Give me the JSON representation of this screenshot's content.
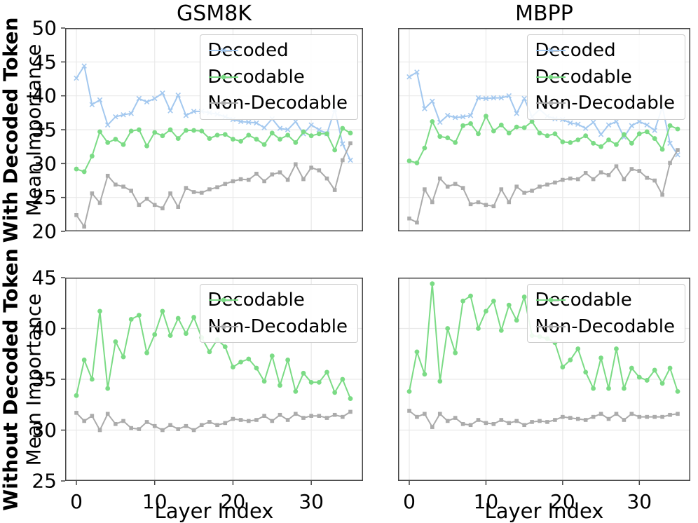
{
  "figure": {
    "column_titles": [
      "GSM8K",
      "MBPP"
    ],
    "row_labels": [
      {
        "primary": "With Decoded Token",
        "secondary": "Mean Importance"
      },
      {
        "primary": "Without Decoded Token",
        "secondary": "Mean Importance"
      }
    ],
    "x_axis_label": "Layer Index"
  },
  "colors": {
    "decoded": "#a3c8ef",
    "decodable": "#7bdb85",
    "non_decodable": "#ababab",
    "grid": "#e9e9e9",
    "spine": "#454545",
    "text": "#000000",
    "legend_border": "#cccccc",
    "background": "#ffffff"
  },
  "chart_data": [
    {
      "id": "gsm8k-with-decoded-token",
      "type": "line",
      "dataset": "GSM8K",
      "condition": "With Decoded Token",
      "ylabel": "Mean Importance",
      "x_range": [
        0,
        35
      ],
      "ylim": [
        20,
        50
      ],
      "yticks": [
        20,
        25,
        30,
        35,
        40,
        45,
        50
      ],
      "xticks": [
        0,
        10,
        20,
        30
      ],
      "show_ytick_labels": true,
      "show_xtick_labels": false,
      "grid": true,
      "legend_position": "upper right",
      "series": [
        {
          "name": "Decoded",
          "color": "decoded",
          "marker": "x",
          "values": [
            42.6,
            44.4,
            38.7,
            39.4,
            35.7,
            36.9,
            37.2,
            37.4,
            39.6,
            39.1,
            39.6,
            40.4,
            37.8,
            40.1,
            37.1,
            37.7,
            37.7,
            37.5,
            37.3,
            36.9,
            36.5,
            36.2,
            36.1,
            36.0,
            35.3,
            36.6,
            35.2,
            35.0,
            36.2,
            34.4,
            35.7,
            35.0,
            34.4,
            38.0,
            32.9,
            30.5
          ]
        },
        {
          "name": "Decodable",
          "color": "decodable",
          "marker": "circle",
          "values": [
            29.2,
            28.8,
            31.1,
            34.7,
            33.1,
            33.6,
            32.8,
            34.8,
            35.0,
            32.6,
            34.6,
            34.1,
            35.0,
            33.7,
            34.9,
            34.9,
            34.8,
            33.7,
            34.2,
            34.3,
            33.6,
            33.3,
            34.2,
            33.6,
            32.8,
            34.5,
            33.6,
            34.2,
            33.1,
            34.7,
            34.1,
            34.4,
            34.4,
            32.0,
            35.2,
            34.5
          ]
        },
        {
          "name": "Non-Decodable",
          "color": "non_decodable",
          "marker": "square",
          "values": [
            22.4,
            20.7,
            25.6,
            24.2,
            28.2,
            26.9,
            26.6,
            26.0,
            23.9,
            24.8,
            23.9,
            23.4,
            25.6,
            23.6,
            26.4,
            25.8,
            25.7,
            26.2,
            26.5,
            27.0,
            27.4,
            27.7,
            27.6,
            28.5,
            27.4,
            28.4,
            28.7,
            27.6,
            29.9,
            27.7,
            29.4,
            29.0,
            27.8,
            26.1,
            30.5,
            33.0
          ]
        }
      ]
    },
    {
      "id": "mbpp-with-decoded-token",
      "type": "line",
      "dataset": "MBPP",
      "condition": "With Decoded Token",
      "ylabel": "Mean Importance",
      "x_range": [
        0,
        35
      ],
      "ylim": [
        20,
        50
      ],
      "yticks": [
        20,
        25,
        30,
        35,
        40,
        45,
        50
      ],
      "xticks": [
        0,
        10,
        20,
        30
      ],
      "show_ytick_labels": false,
      "show_xtick_labels": false,
      "grid": true,
      "legend_position": "upper right",
      "series": [
        {
          "name": "Decoded",
          "color": "decoded",
          "marker": "x",
          "values": [
            42.8,
            43.5,
            38.1,
            39.2,
            36.1,
            37.1,
            36.8,
            36.9,
            37.1,
            39.7,
            39.6,
            39.7,
            39.7,
            40.0,
            37.4,
            39.6,
            36.9,
            38.0,
            37.0,
            36.6,
            36.5,
            36.0,
            35.8,
            35.2,
            36.1,
            34.3,
            35.7,
            36.2,
            33.9,
            35.6,
            36.2,
            35.7,
            34.9,
            38.4,
            33.0,
            31.3
          ]
        },
        {
          "name": "Decodable",
          "color": "decodable",
          "marker": "circle",
          "values": [
            30.4,
            30.1,
            32.3,
            36.2,
            34.0,
            33.8,
            33.1,
            35.6,
            35.9,
            34.4,
            37.0,
            34.8,
            35.7,
            34.5,
            35.4,
            35.3,
            36.2,
            34.5,
            34.1,
            34.4,
            33.2,
            33.1,
            33.5,
            34.1,
            33.0,
            32.5,
            33.5,
            32.8,
            34.3,
            33.0,
            34.4,
            34.7,
            33.7,
            32.1,
            35.6,
            35.1
          ]
        },
        {
          "name": "Non-Decodable",
          "color": "non_decodable",
          "marker": "square",
          "values": [
            21.9,
            21.3,
            26.2,
            24.3,
            27.8,
            26.6,
            27.0,
            26.4,
            24.0,
            24.3,
            23.9,
            23.7,
            26.2,
            24.3,
            26.6,
            25.7,
            26.0,
            26.6,
            26.9,
            27.2,
            27.6,
            27.8,
            27.7,
            28.6,
            27.7,
            28.7,
            28.3,
            29.6,
            27.7,
            29.2,
            28.9,
            27.9,
            27.5,
            25.4,
            30.1,
            32.0
          ]
        }
      ]
    },
    {
      "id": "gsm8k-without-decoded-token",
      "type": "line",
      "dataset": "GSM8K",
      "condition": "Without Decoded Token",
      "ylabel": "Mean Importance",
      "x_range": [
        0,
        35
      ],
      "ylim": [
        25,
        45
      ],
      "yticks": [
        25,
        30,
        35,
        40,
        45
      ],
      "xticks": [
        0,
        10,
        20,
        30
      ],
      "show_ytick_labels": true,
      "show_xtick_labels": true,
      "grid": true,
      "legend_position": "upper right",
      "series": [
        {
          "name": "Decodable",
          "color": "decodable",
          "marker": "circle",
          "values": [
            33.4,
            36.9,
            35.0,
            41.7,
            34.1,
            38.7,
            37.2,
            40.9,
            41.3,
            37.6,
            39.4,
            41.7,
            39.3,
            41.0,
            39.5,
            41.1,
            39.1,
            37.7,
            38.9,
            38.2,
            36.2,
            36.7,
            37.0,
            36.1,
            34.8,
            37.3,
            34.4,
            36.9,
            33.8,
            35.6,
            34.7,
            34.7,
            35.7,
            33.7,
            35.0,
            33.1
          ]
        },
        {
          "name": "Non-Decodable",
          "color": "non_decodable",
          "marker": "square",
          "values": [
            31.7,
            30.9,
            31.4,
            30.0,
            31.6,
            30.6,
            30.9,
            30.2,
            30.1,
            30.8,
            30.4,
            30.0,
            30.5,
            30.1,
            30.4,
            30.0,
            30.5,
            30.8,
            30.5,
            30.7,
            31.1,
            31.0,
            30.9,
            31.0,
            31.4,
            30.9,
            31.5,
            31.0,
            31.6,
            31.2,
            31.4,
            31.4,
            31.2,
            31.5,
            31.3,
            31.8
          ]
        }
      ]
    },
    {
      "id": "mbpp-without-decoded-token",
      "type": "line",
      "dataset": "MBPP",
      "condition": "Without Decoded Token",
      "ylabel": "Mean Importance",
      "x_range": [
        0,
        35
      ],
      "ylim": [
        25,
        45
      ],
      "yticks": [
        25,
        30,
        35,
        40,
        45
      ],
      "xticks": [
        0,
        10,
        20,
        30
      ],
      "show_ytick_labels": false,
      "show_xtick_labels": true,
      "grid": true,
      "legend_position": "upper right",
      "series": [
        {
          "name": "Decodable",
          "color": "decodable",
          "marker": "circle",
          "values": [
            33.8,
            37.7,
            35.5,
            44.4,
            34.8,
            40.0,
            37.6,
            42.7,
            43.2,
            40.0,
            41.7,
            42.7,
            39.8,
            42.3,
            40.8,
            43.1,
            39.3,
            39.2,
            39.0,
            38.6,
            36.2,
            36.9,
            38.0,
            35.7,
            34.1,
            37.1,
            34.1,
            38.0,
            34.1,
            36.1,
            35.2,
            34.9,
            35.9,
            34.6,
            36.1,
            33.8
          ]
        },
        {
          "name": "Non-Decodable",
          "color": "non_decodable",
          "marker": "square",
          "values": [
            31.9,
            31.3,
            31.6,
            30.3,
            31.6,
            30.9,
            31.2,
            30.6,
            30.5,
            31.0,
            30.7,
            30.6,
            31.0,
            30.7,
            30.9,
            30.5,
            30.8,
            30.9,
            30.8,
            31.0,
            31.3,
            31.2,
            31.1,
            31.0,
            31.3,
            31.6,
            31.1,
            31.6,
            31.0,
            31.6,
            31.3,
            31.3,
            31.3,
            31.3,
            31.5,
            31.6
          ]
        }
      ]
    }
  ]
}
